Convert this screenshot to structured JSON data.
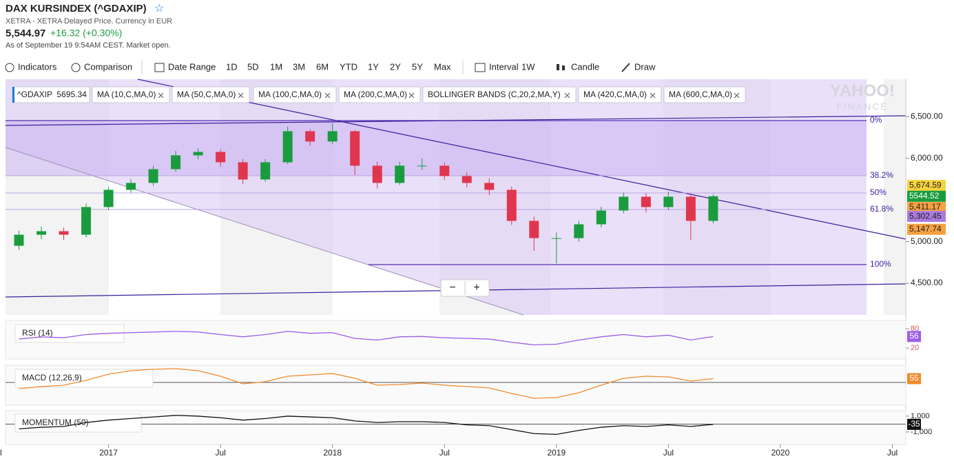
{
  "header": {
    "title": "DAX KURSINDEX (^GDAXIP)",
    "subtitle": "XETRA - XETRA Delayed Price. Currency in EUR",
    "price": "5,544.97",
    "change": "+16.32 (+0.30%)",
    "status": "As of September 19 9:54AM CEST. Market open."
  },
  "toolbar": [
    "Indicators",
    "Comparison",
    "Date Range",
    "1D",
    "5D",
    "1M",
    "3M",
    "6M",
    "YTD",
    "1Y",
    "2Y",
    "5Y",
    "Max",
    "Interval",
    "1W",
    "Candle",
    "Draw"
  ],
  "chips": [
    "^GDAXIP  5695.34",
    "MA (10,C,MA,0)",
    "MA (50,C,MA,0)",
    "MA (100,C,MA,0)",
    "MA (200,C,MA,0)",
    "BOLLINGER BANDS (C,20,2,MA,Y)",
    "MA (420,C,MA,0)",
    "MA (600,C,MA,0)"
  ],
  "watermark": [
    "YAHOO!",
    "FINANCE"
  ],
  "zoom": [
    "−",
    "+"
  ],
  "fib_labels": [
    "0%",
    "38.2%",
    "50%",
    "61.8%",
    "100%"
  ],
  "chart_data": {
    "type": "candlestick",
    "up_color": "#1a9c3e",
    "down_color": "#e0364d",
    "x": [
      2016.6,
      2016.7,
      2016.8,
      2016.9,
      2017.0,
      2017.1,
      2017.2,
      2017.3,
      2017.4,
      2017.5,
      2017.6,
      2017.7,
      2017.8,
      2017.9,
      2018.0,
      2018.1,
      2018.2,
      2018.3,
      2018.4,
      2018.5,
      2018.6,
      2018.7,
      2018.8,
      2018.9,
      2019.0,
      2019.1,
      2019.2,
      2019.3,
      2019.4,
      2019.5,
      2019.6,
      2019.7
    ],
    "open": [
      4950,
      5083,
      5125,
      5083,
      5415,
      5622,
      5705,
      5870,
      6036,
      6077,
      5953,
      5746,
      5953,
      6326,
      6202,
      6326,
      5912,
      5705,
      5912,
      5912,
      5787,
      5705,
      5622,
      5249,
      5042,
      5042,
      5208,
      5373,
      5539,
      5415,
      5539,
      5249
    ],
    "high": [
      5130,
      5180,
      5170,
      5460,
      5660,
      5750,
      5910,
      6090,
      6120,
      6110,
      5990,
      5990,
      6380,
      6350,
      6420,
      6340,
      5960,
      5960,
      6000,
      5950,
      5830,
      5760,
      5660,
      5300,
      5110,
      5250,
      5420,
      5590,
      5580,
      5600,
      5580,
      5570
    ],
    "low": [
      4900,
      5030,
      5020,
      5050,
      5380,
      5590,
      5670,
      5840,
      5990,
      5900,
      5690,
      5720,
      5930,
      6150,
      6170,
      5800,
      5640,
      5680,
      5860,
      5740,
      5650,
      5560,
      5200,
      4890,
      4740,
      5000,
      5170,
      5340,
      5350,
      5380,
      5020,
      5220
    ],
    "close": [
      5083,
      5125,
      5083,
      5415,
      5622,
      5705,
      5870,
      6036,
      6077,
      5953,
      5746,
      5953,
      6326,
      6202,
      6326,
      5912,
      5705,
      5912,
      5912,
      5787,
      5705,
      5622,
      5249,
      5042,
      5042,
      5208,
      5373,
      5539,
      5415,
      5539,
      5249,
      5544.52
    ],
    "xlim": [
      2016.54,
      2020.56
    ],
    "xticks": [
      {
        "value": 2016.5,
        "label": "Jul"
      },
      2017,
      {
        "value": 2017.5,
        "label": "Jul"
      },
      2018,
      {
        "value": 2018.5,
        "label": "Jul"
      },
      2019,
      {
        "value": 2019.5,
        "label": "Jul"
      },
      2020,
      {
        "value": 2020.5,
        "label": "Jul"
      }
    ],
    "ylim": [
      4120,
      6950
    ],
    "yticks": [
      {
        "value": 4500,
        "label": "4,500.00"
      },
      {
        "value": 5000,
        "label": "5,000.00"
      },
      {
        "value": 6000,
        "label": "6,000.00"
      },
      {
        "value": 6500,
        "label": "6,500.00"
      }
    ],
    "price_tags": [
      {
        "value": 5674.59,
        "label": "5,674.59",
        "color": "#f7d33c"
      },
      {
        "value": 5411.17,
        "label": "5,411.17",
        "color": "#f5a142"
      },
      {
        "value": 5302.45,
        "label": "5,302.45",
        "color": "#a97be0"
      },
      {
        "value": 5147.74,
        "label": "5,147.74",
        "color": "#f5a142"
      }
    ]
  },
  "panels": [
    {
      "type": "line",
      "name": "RSI (14)",
      "color": "#9c5de8",
      "ylim": [
        -14,
        106
      ],
      "yticks": [
        80,
        20
      ],
      "values": [
        48,
        55,
        52,
        62,
        66,
        68,
        70,
        72,
        70,
        62,
        55,
        62,
        72,
        66,
        68,
        50,
        45,
        55,
        56,
        52,
        50,
        48,
        38,
        30,
        32,
        45,
        55,
        62,
        55,
        60,
        45,
        56
      ]
    },
    {
      "type": "line",
      "name": "MACD (12,26,9)",
      "color": "#f08a2c",
      "ylim": [
        -330,
        250
      ],
      "yticks": [],
      "values": [
        -90,
        -60,
        -40,
        30,
        120,
        170,
        190,
        200,
        170,
        90,
        -20,
        10,
        90,
        110,
        130,
        60,
        -40,
        -30,
        -10,
        -40,
        -60,
        -80,
        -160,
        -230,
        -220,
        -150,
        -40,
        60,
        90,
        80,
        20,
        55
      ]
    },
    {
      "type": "line",
      "name": "MOMENTUM (50)",
      "color": "#111111",
      "ylim": [
        -2570,
        1690
      ],
      "yticks": [
        {
          "value": 1000,
          "label": "1,000"
        },
        {
          "value": -1000,
          "label": "-1,000"
        }
      ],
      "values": [
        -600,
        -400,
        -300,
        200,
        500,
        700,
        900,
        1100,
        1000,
        800,
        500,
        700,
        1000,
        900,
        800,
        400,
        200,
        300,
        300,
        200,
        -100,
        -200,
        -700,
        -1200,
        -1300,
        -800,
        -400,
        -200,
        -300,
        -100,
        -300,
        -35
      ]
    }
  ]
}
